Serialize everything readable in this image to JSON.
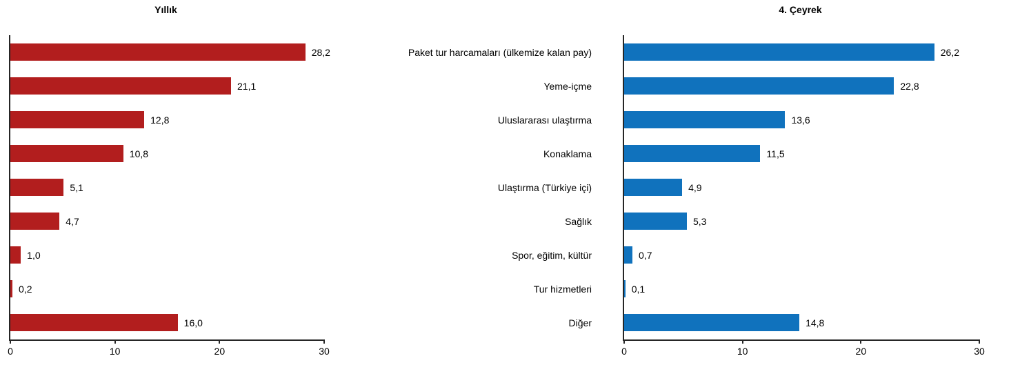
{
  "figure": {
    "background": "#ffffff",
    "axis_color": "#262626",
    "text_color": "#000000"
  },
  "chart_data": {
    "type": "bar",
    "orientation": "horizontal",
    "grid": false,
    "legend": false,
    "categories": [
      "Paket tur harcamaları (ülkemize kalan pay)",
      "Yeme-içme",
      "Uluslararası ulaştırma",
      "Konaklama",
      "Ulaştırma (Türkiye içi)",
      "Sağlık",
      "Spor, eğitim, kültür",
      "Tur hizmetleri",
      "Diğer"
    ],
    "series": [
      {
        "name": "Yıllık",
        "color": "#b21e1e",
        "values": [
          28.2,
          21.1,
          12.8,
          10.8,
          5.1,
          4.7,
          1.0,
          0.2,
          16.0
        ],
        "value_labels": [
          "28,2",
          "21,1",
          "12,8",
          "10,8",
          "5,1",
          "4,7",
          "1,0",
          "0,2",
          "16,0"
        ]
      },
      {
        "name": "4. Çeyrek",
        "color": "#1072bd",
        "values": [
          26.2,
          22.8,
          13.6,
          11.5,
          4.9,
          5.3,
          0.7,
          0.1,
          14.8
        ],
        "value_labels": [
          "26,2",
          "22,8",
          "13,6",
          "11,5",
          "4,9",
          "5,3",
          "0,7",
          "0,1",
          "14,8"
        ]
      }
    ],
    "xlim": [
      0,
      30
    ],
    "x_tick_values": [
      0,
      10,
      20,
      30
    ],
    "x_tick_labels": [
      "0",
      "10",
      "20",
      "30"
    ]
  }
}
